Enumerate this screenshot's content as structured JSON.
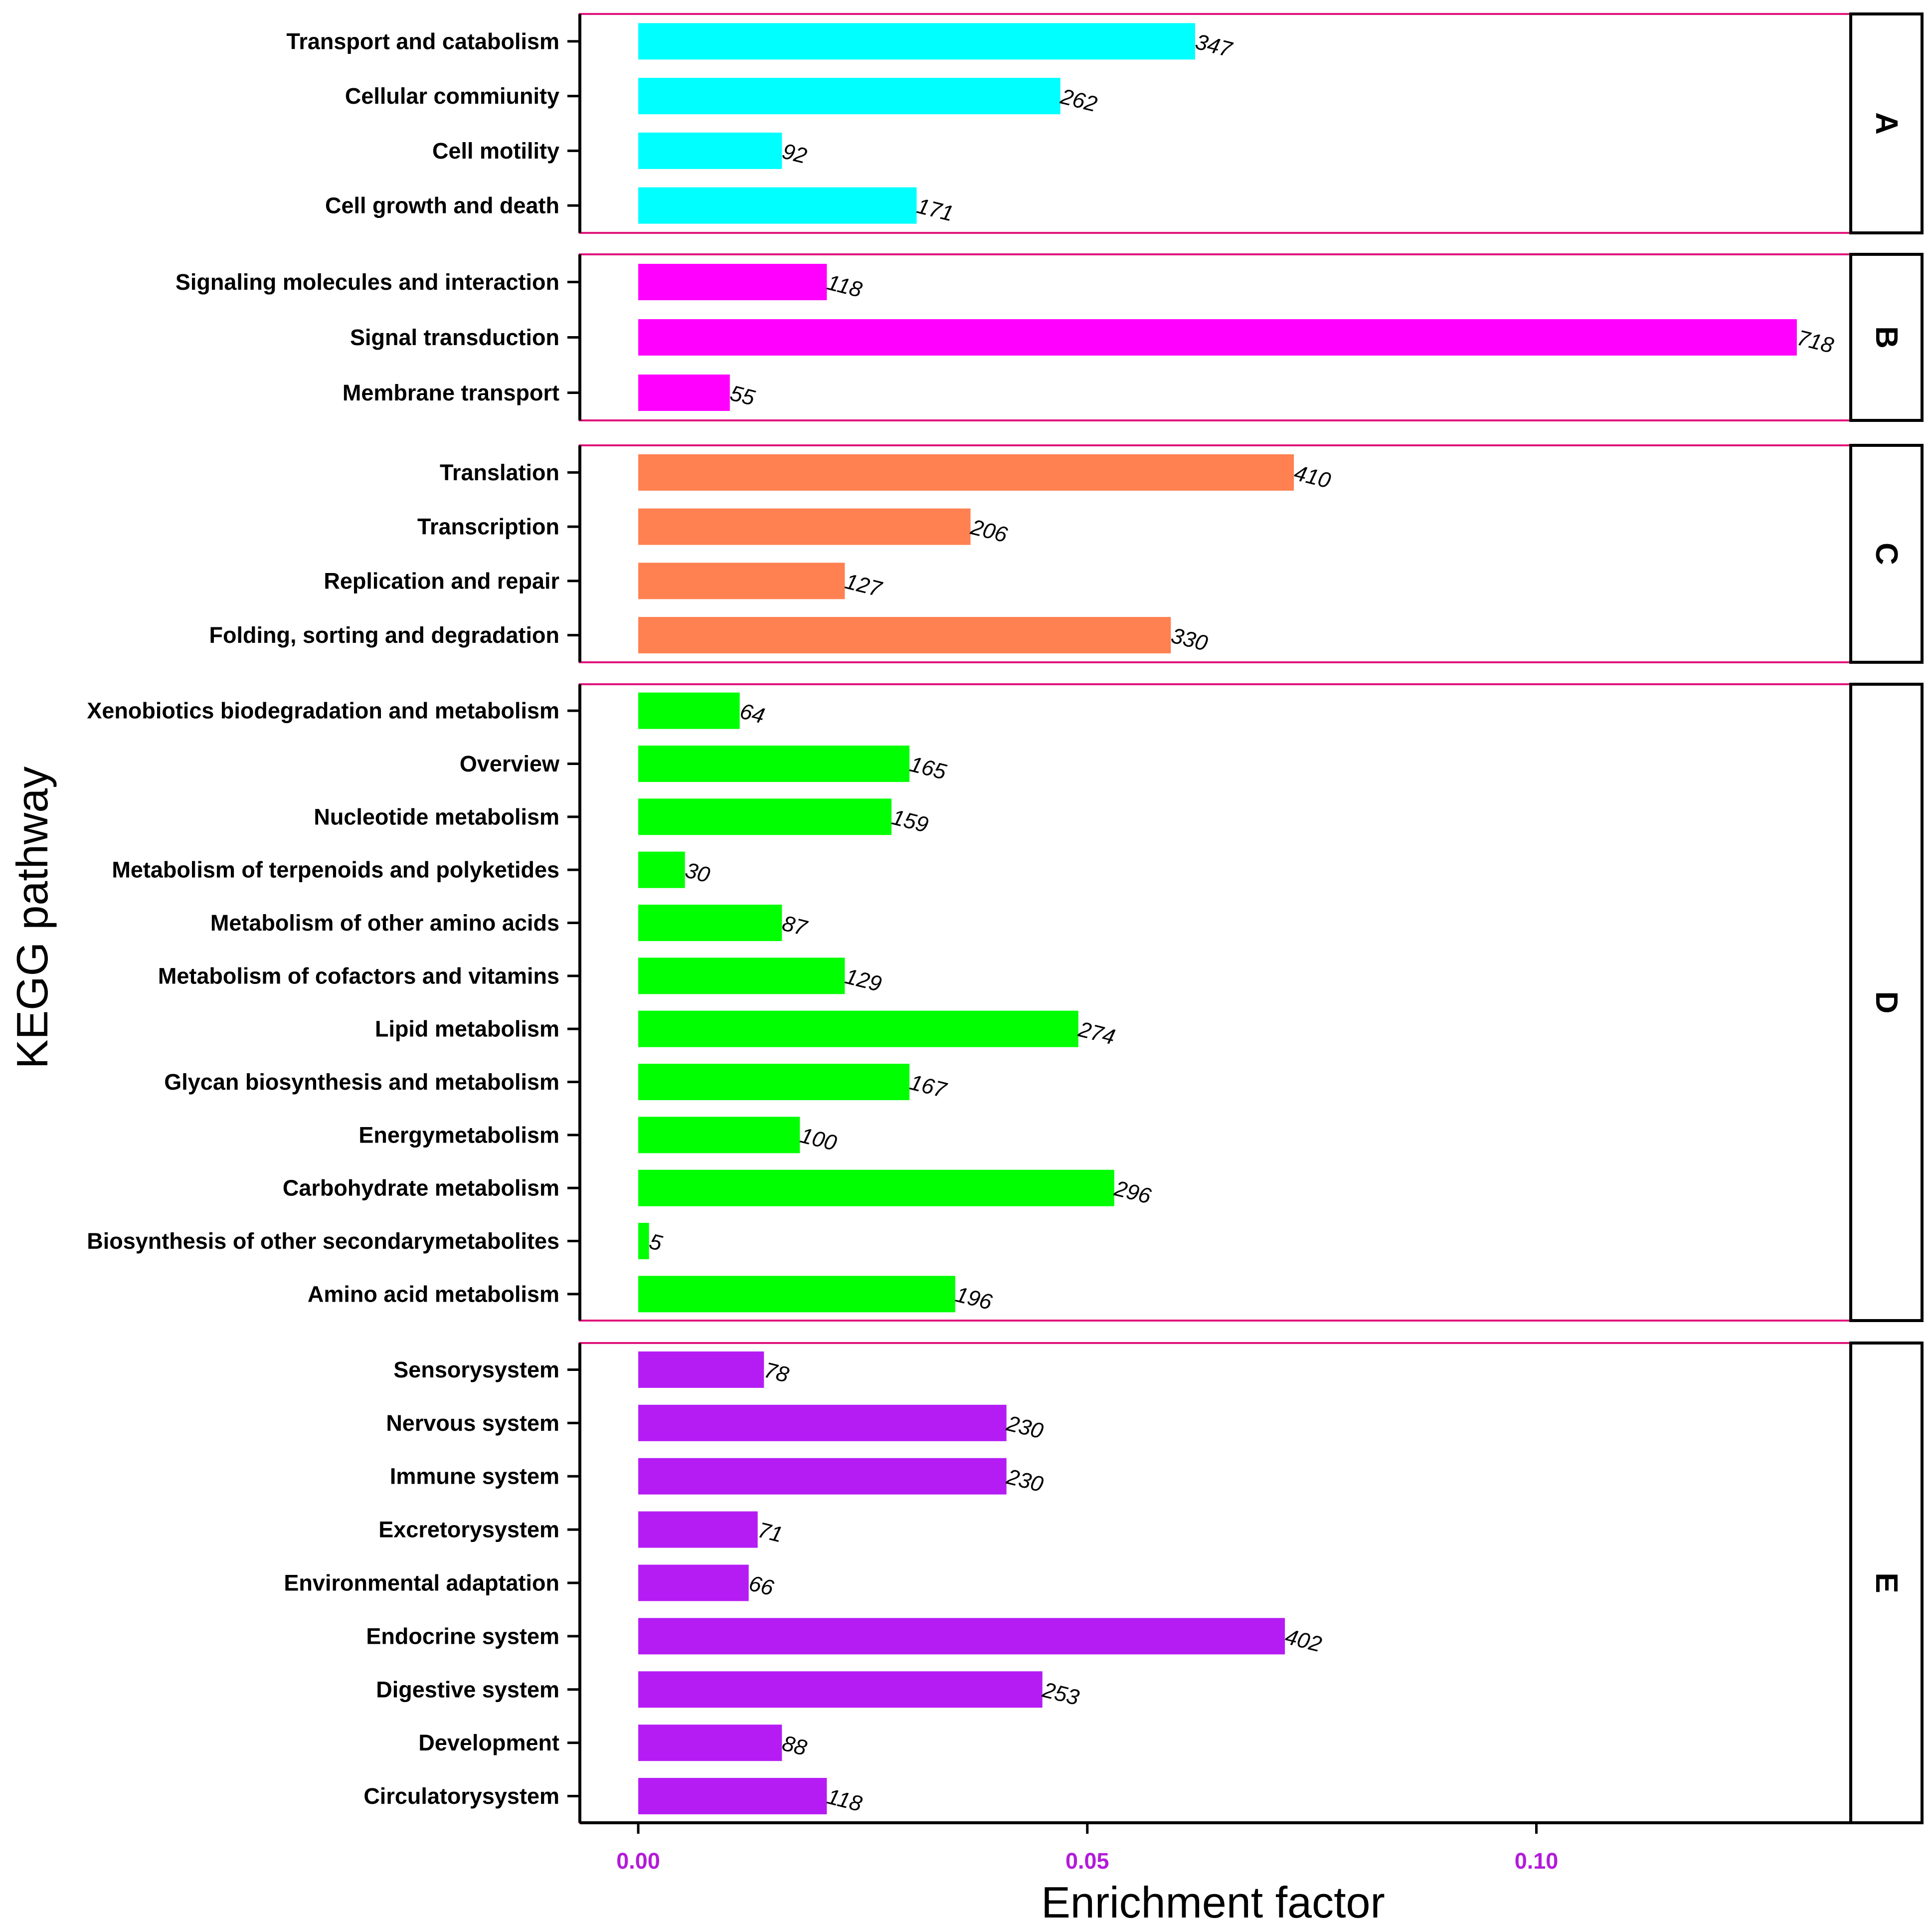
{
  "chart_data": {
    "type": "bar",
    "orientation": "horizontal",
    "xlabel": "Enrichment factor",
    "ylabel": "KEGG pathway",
    "xlim": [
      -0.0065,
      0.135
    ],
    "xticks": [
      {
        "value": 0.0,
        "label": "0.00"
      },
      {
        "value": 0.05,
        "label": "0.05"
      },
      {
        "value": 0.1,
        "label": "0.10"
      }
    ],
    "colors": {
      "tick_label": "#b31bd9",
      "panel_border": "#e0157c",
      "strip_border": "#000000"
    },
    "panels": [
      {
        "label": "A",
        "color": "#00ffff",
        "bars": [
          {
            "category": "Transport and catabolism",
            "value": 0.062,
            "count": "347"
          },
          {
            "category": "Cellular commiunity",
            "value": 0.047,
            "count": "262"
          },
          {
            "category": "Cell motility",
            "value": 0.016,
            "count": "92"
          },
          {
            "category": "Cell growth and death",
            "value": 0.031,
            "count": "171"
          }
        ]
      },
      {
        "label": "B",
        "color": "#ff00ff",
        "bars": [
          {
            "category": "Signaling molecules and interaction",
            "value": 0.021,
            "count": "118"
          },
          {
            "category": "Signal transduction",
            "value": 0.129,
            "count": "718"
          },
          {
            "category": "Membrane transport",
            "value": 0.0102,
            "count": "55"
          }
        ]
      },
      {
        "label": "C",
        "color": "#ff8050",
        "bars": [
          {
            "category": "Translation",
            "value": 0.073,
            "count": "410"
          },
          {
            "category": "Transcription",
            "value": 0.037,
            "count": "206"
          },
          {
            "category": "Replication and repair",
            "value": 0.023,
            "count": "127"
          },
          {
            "category": "Folding, sorting and degradation",
            "value": 0.0593,
            "count": "330"
          }
        ]
      },
      {
        "label": "D",
        "color": "#00ff00",
        "bars": [
          {
            "category": "Xenobiotics biodegradation and metabolism",
            "value": 0.0113,
            "count": "64"
          },
          {
            "category": "Overview",
            "value": 0.0302,
            "count": "165"
          },
          {
            "category": "Nucleotide metabolism",
            "value": 0.0282,
            "count": "159"
          },
          {
            "category": "Metabolism of terpenoids and polyketides",
            "value": 0.0052,
            "count": "30"
          },
          {
            "category": "Metabolism of other amino acids",
            "value": 0.016,
            "count": "87"
          },
          {
            "category": "Metabolism of cofactors and vitamins",
            "value": 0.023,
            "count": "129"
          },
          {
            "category": "Lipid metabolism",
            "value": 0.049,
            "count": "274"
          },
          {
            "category": "Glycan biosynthesis and metabolism",
            "value": 0.0302,
            "count": "167"
          },
          {
            "category": "Energymetabolism",
            "value": 0.018,
            "count": "100"
          },
          {
            "category": "Carbohydrate metabolism",
            "value": 0.053,
            "count": "296"
          },
          {
            "category": "Biosynthesis of other secondarymetabolites",
            "value": 0.0012,
            "count": "5"
          },
          {
            "category": "Amino acid metabolism",
            "value": 0.0353,
            "count": "196"
          }
        ]
      },
      {
        "label": "E",
        "color": "#b51cf4",
        "bars": [
          {
            "category": "Sensorysystem",
            "value": 0.014,
            "count": "78"
          },
          {
            "category": "Nervous system",
            "value": 0.041,
            "count": "230"
          },
          {
            "category": "Immune system",
            "value": 0.041,
            "count": "230"
          },
          {
            "category": "Excretorysystem",
            "value": 0.0133,
            "count": "71"
          },
          {
            "category": "Environmental adaptation",
            "value": 0.0123,
            "count": "66"
          },
          {
            "category": "Endocrine system",
            "value": 0.072,
            "count": "402"
          },
          {
            "category": "Digestive system",
            "value": 0.045,
            "count": "253"
          },
          {
            "category": "Development",
            "value": 0.016,
            "count": "88"
          },
          {
            "category": "Circulatorysystem",
            "value": 0.021,
            "count": "118"
          }
        ]
      }
    ]
  }
}
